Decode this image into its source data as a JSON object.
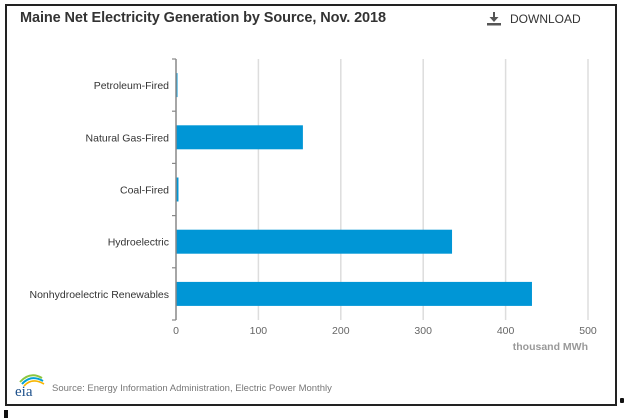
{
  "header": {
    "title": "Maine Net Electricity Generation by Source, Nov. 2018",
    "download_label": "DOWNLOAD",
    "download_icon": "download-icon"
  },
  "footer": {
    "source": "Source: Energy Information Administration, Electric Power Monthly",
    "logo_text": "eia"
  },
  "colors": {
    "bar": "#0096d6",
    "grid": "#dddddd",
    "axis": "#888888"
  },
  "chart_data": {
    "type": "bar",
    "orientation": "horizontal",
    "title": "Maine Net Electricity Generation by Source, Nov. 2018",
    "categories": [
      "Petroleum-Fired",
      "Natural Gas-Fired",
      "Coal-Fired",
      "Hydroelectric",
      "Nonhydroelectric Renewables"
    ],
    "values": [
      1,
      154,
      3,
      335,
      432
    ],
    "xlabel": "thousand MWh",
    "ylabel": "",
    "xlim": [
      0,
      500
    ],
    "xticks": [
      "0",
      "100",
      "200",
      "300",
      "400",
      "500"
    ],
    "grid": true,
    "legend": "none"
  }
}
